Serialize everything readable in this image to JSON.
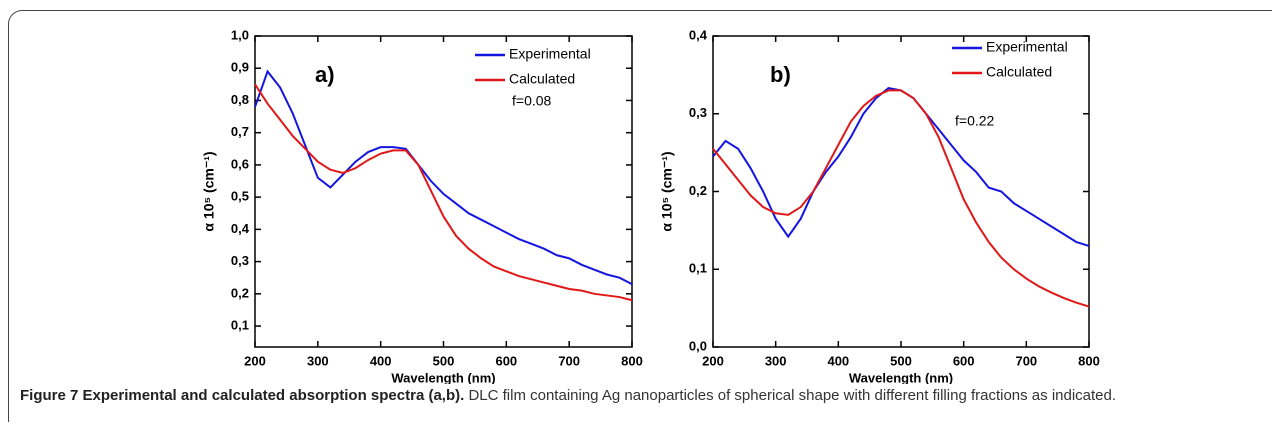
{
  "chart_data": [
    {
      "type": "line",
      "panel_label": "a)",
      "annotation": "f=0.08",
      "x_label": "Wavelength (nm)",
      "y_label": "α 10⁵ (cm⁻¹)",
      "x": [
        200,
        220,
        240,
        260,
        280,
        300,
        320,
        340,
        360,
        380,
        400,
        420,
        440,
        460,
        480,
        500,
        520,
        540,
        560,
        580,
        600,
        620,
        640,
        660,
        680,
        700,
        720,
        740,
        760,
        780,
        800
      ],
      "series": [
        {
          "name": "Experimental",
          "color": "#1515e0",
          "values": [
            0.78,
            0.89,
            0.84,
            0.76,
            0.66,
            0.56,
            0.53,
            0.57,
            0.61,
            0.64,
            0.655,
            0.655,
            0.65,
            0.6,
            0.55,
            0.51,
            0.48,
            0.45,
            0.43,
            0.41,
            0.39,
            0.37,
            0.355,
            0.34,
            0.32,
            0.31,
            0.29,
            0.275,
            0.26,
            0.25,
            0.23
          ]
        },
        {
          "name": "Calculated",
          "color": "#e01818",
          "values": [
            0.85,
            0.79,
            0.74,
            0.69,
            0.65,
            0.61,
            0.585,
            0.575,
            0.59,
            0.615,
            0.635,
            0.645,
            0.645,
            0.6,
            0.52,
            0.44,
            0.38,
            0.34,
            0.31,
            0.285,
            0.27,
            0.255,
            0.245,
            0.235,
            0.225,
            0.215,
            0.21,
            0.2,
            0.195,
            0.19,
            0.18
          ]
        }
      ],
      "xlim": [
        200,
        800
      ],
      "xticks": [
        200,
        300,
        400,
        500,
        600,
        700,
        800
      ],
      "ylim": [
        0.035,
        1.0
      ],
      "yticks": [
        {
          "value": 0.1,
          "label": "0,1"
        },
        {
          "value": 0.2,
          "label": "0,2"
        },
        {
          "value": 0.3,
          "label": "0,3"
        },
        {
          "value": 0.4,
          "label": "0,4"
        },
        {
          "value": 0.5,
          "label": "0,5"
        },
        {
          "value": 0.6,
          "label": "0,6"
        },
        {
          "value": 0.7,
          "label": "0,7"
        },
        {
          "value": 0.8,
          "label": "0,8"
        },
        {
          "value": 0.9,
          "label": "0,9"
        },
        {
          "value": 1.0,
          "label": "1,0"
        }
      ]
    },
    {
      "type": "line",
      "panel_label": "b)",
      "annotation": "f=0.22",
      "x_label": "Wavelength (nm)",
      "y_label": "α 10⁵ (cm⁻¹)",
      "x": [
        200,
        220,
        240,
        260,
        280,
        300,
        320,
        340,
        360,
        380,
        400,
        420,
        440,
        460,
        480,
        500,
        520,
        540,
        560,
        580,
        600,
        620,
        640,
        660,
        680,
        700,
        720,
        740,
        760,
        780,
        800
      ],
      "series": [
        {
          "name": "Experimental",
          "color": "#1515e0",
          "values": [
            0.245,
            0.265,
            0.255,
            0.23,
            0.2,
            0.165,
            0.142,
            0.165,
            0.2,
            0.225,
            0.245,
            0.27,
            0.3,
            0.32,
            0.333,
            0.33,
            0.32,
            0.3,
            0.28,
            0.26,
            0.24,
            0.225,
            0.205,
            0.2,
            0.185,
            0.175,
            0.165,
            0.155,
            0.145,
            0.135,
            0.13
          ]
        },
        {
          "name": "Calculated",
          "color": "#e01818",
          "values": [
            0.255,
            0.235,
            0.215,
            0.195,
            0.18,
            0.172,
            0.17,
            0.18,
            0.2,
            0.23,
            0.26,
            0.29,
            0.31,
            0.323,
            0.33,
            0.33,
            0.32,
            0.3,
            0.27,
            0.23,
            0.19,
            0.16,
            0.135,
            0.115,
            0.1,
            0.088,
            0.078,
            0.07,
            0.063,
            0.057,
            0.052
          ]
        }
      ],
      "xlim": [
        200,
        800
      ],
      "xticks": [
        200,
        300,
        400,
        500,
        600,
        700,
        800
      ],
      "ylim": [
        0,
        0.4
      ],
      "yticks": [
        {
          "value": 0,
          "label": "0,0"
        },
        {
          "value": 0.1,
          "label": "0,1"
        },
        {
          "value": 0.2,
          "label": "0,2"
        },
        {
          "value": 0.3,
          "label": "0,3"
        },
        {
          "value": 0.4,
          "label": "0,4"
        }
      ]
    }
  ],
  "caption": {
    "label": "Figure 7 Experimental and calculated absorption spectra (a,b).",
    "text": "DLC film containing Ag nanoparticles of spherical shape with different filling fractions as indicated."
  }
}
